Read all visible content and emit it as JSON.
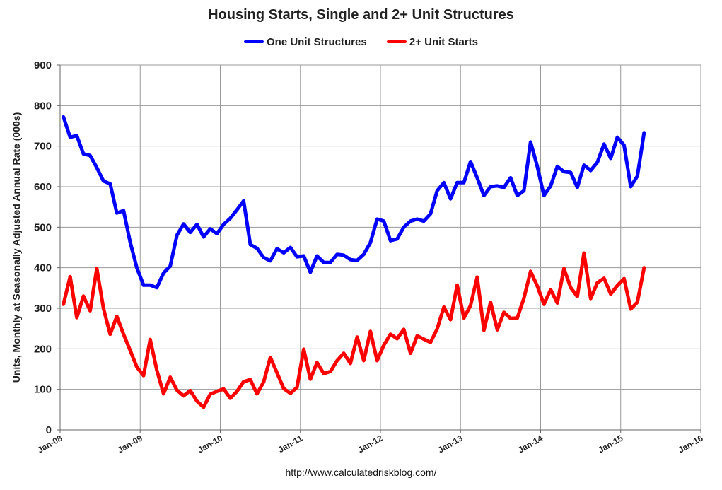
{
  "chart_data": {
    "type": "line",
    "title": "Housing Starts, Single and 2+ Unit Structures",
    "xlabel": "",
    "ylabel": "Units, Monthly at Seasonally Adjusted Annual Rate (000s)",
    "ylim": [
      0,
      900
    ],
    "yticks": [
      "0",
      "100",
      "200",
      "300",
      "400",
      "500",
      "600",
      "700",
      "800",
      "900"
    ],
    "xlim": [
      "2008-01",
      "2016-01"
    ],
    "xticks": [
      "Jan-08",
      "Jan-09",
      "Jan-10",
      "Jan-11",
      "Jan-12",
      "Jan-13",
      "Jan-14",
      "Jan-15",
      "Jan-16"
    ],
    "grid": true,
    "legend": "top-center",
    "x_start": "2008-01",
    "series": [
      {
        "name": "One Unit Structures",
        "color": "#0000ff",
        "values": [
          772,
          722,
          726,
          681,
          677,
          647,
          614,
          607,
          535,
          541,
          463,
          400,
          357,
          357,
          351,
          387,
          404,
          480,
          508,
          487,
          507,
          476,
          496,
          484,
          507,
          522,
          543,
          565,
          457,
          448,
          425,
          417,
          447,
          437,
          450,
          427,
          429,
          389,
          429,
          413,
          413,
          433,
          431,
          420,
          418,
          433,
          462,
          520,
          515,
          467,
          471,
          500,
          515,
          520,
          515,
          533,
          590,
          610,
          570,
          610,
          610,
          662,
          622,
          578,
          600,
          602,
          598,
          622,
          578,
          590,
          710,
          650,
          578,
          602,
          650,
          637,
          635,
          598,
          653,
          640,
          660,
          705,
          670,
          722,
          702,
          600,
          626,
          733
        ]
      },
      {
        "name": "2+ Unit Starts",
        "color": "#ff0000",
        "values": [
          310,
          378,
          277,
          330,
          294,
          398,
          300,
          236,
          280,
          236,
          196,
          155,
          134,
          223,
          147,
          89,
          130,
          98,
          84,
          97,
          71,
          56,
          88,
          95,
          101,
          78,
          95,
          119,
          124,
          89,
          118,
          179,
          141,
          102,
          90,
          105,
          199,
          125,
          166,
          139,
          144,
          171,
          189,
          164,
          229,
          171,
          243,
          171,
          209,
          236,
          225,
          248,
          189,
          232,
          224,
          216,
          249,
          303,
          272,
          357,
          276,
          307,
          377,
          246,
          315,
          247,
          290,
          275,
          276,
          325,
          391,
          355,
          310,
          346,
          313,
          398,
          351,
          329,
          436,
          324,
          363,
          374,
          335,
          356,
          373,
          298,
          315,
          400
        ]
      }
    ]
  },
  "source": "http://www.calculatedriskblog.com/"
}
